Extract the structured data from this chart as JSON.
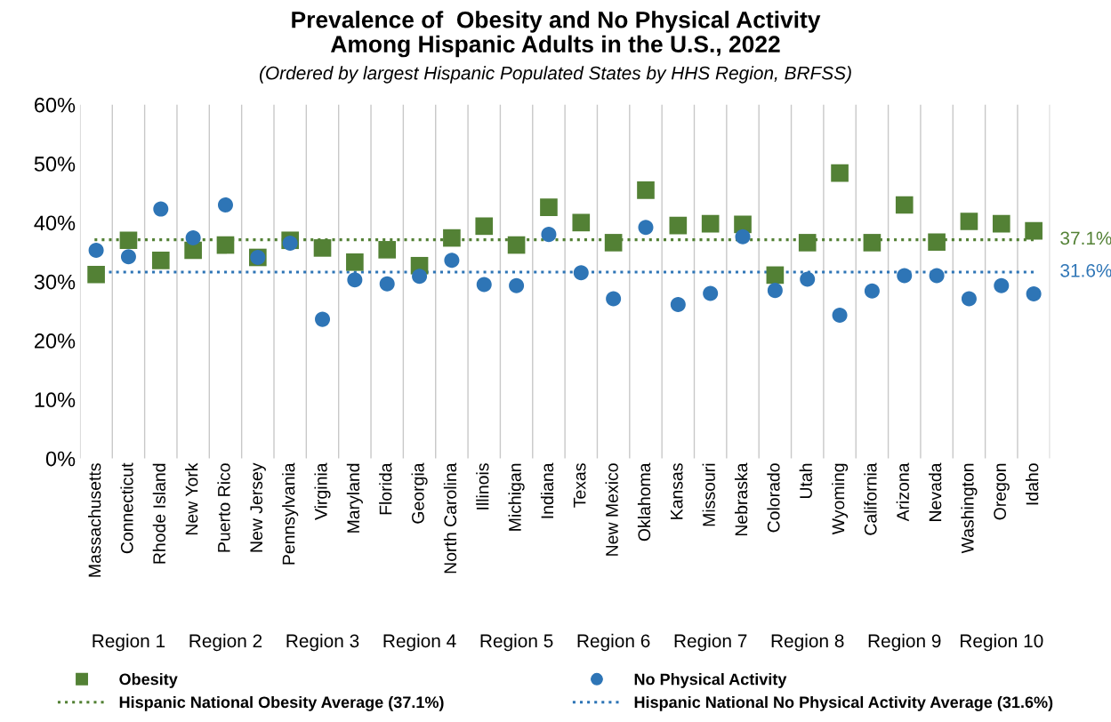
{
  "chart_data": {
    "type": "scatter",
    "title": "Prevalence of  Obesity and No Physical Activity\nAmong Hispanic Adults in the U.S., 2022",
    "subtitle": "(Ordered by largest Hispanic Populated States by HHS Region, BRFSS)",
    "categories": [
      "Massachusetts",
      "Connecticut",
      "Rhode Island",
      "New York",
      "Puerto Rico",
      "New Jersey",
      "Pennsylvania",
      "Virginia",
      "Maryland",
      "Florida",
      "Georgia",
      "North Carolina",
      "Illinois",
      "Michigan",
      "Indiana",
      "Texas",
      "New Mexico",
      "Oklahoma",
      "Kansas",
      "Missouri",
      "Nebraska",
      "Colorado",
      "Utah",
      "Wyoming",
      "California",
      "Arizona",
      "Nevada",
      "Washington",
      "Oregon",
      "Idaho"
    ],
    "series": [
      {
        "name": "Obesity",
        "color": "#538135",
        "marker": "square",
        "values": [
          31.2,
          37.0,
          33.6,
          35.3,
          36.2,
          34.1,
          37.0,
          35.7,
          33.3,
          35.4,
          32.7,
          37.4,
          39.4,
          36.2,
          42.6,
          40.0,
          36.6,
          45.5,
          39.5,
          39.8,
          39.7,
          31.1,
          36.6,
          48.4,
          36.6,
          43.0,
          36.7,
          40.2,
          39.8,
          38.6
        ]
      },
      {
        "name": "No Physical Activity",
        "color": "#2e75b6",
        "marker": "circle",
        "values": [
          35.3,
          34.2,
          42.3,
          37.4,
          43.0,
          34.1,
          36.5,
          23.6,
          30.3,
          29.6,
          30.9,
          33.6,
          29.5,
          29.3,
          38.0,
          31.5,
          27.1,
          39.2,
          26.1,
          28.0,
          37.6,
          28.5,
          30.4,
          24.3,
          28.4,
          31.0,
          31.0,
          27.1,
          29.3,
          27.9
        ]
      }
    ],
    "ylim": [
      0,
      60
    ],
    "yticks": [
      {
        "value": 0,
        "label": "0%"
      },
      {
        "value": 10,
        "label": "10%"
      },
      {
        "value": 20,
        "label": "20%"
      },
      {
        "value": 30,
        "label": "30%"
      },
      {
        "value": 40,
        "label": "40%"
      },
      {
        "value": 50,
        "label": "50%"
      },
      {
        "value": 60,
        "label": "60%"
      }
    ],
    "ref_lines": [
      {
        "axis": "y",
        "value": 37.1,
        "label": "Hispanic National Obesity Average (37.1%)",
        "color": "#538135",
        "line_style": "dotted"
      },
      {
        "axis": "y",
        "value": 31.6,
        "label": "Hispanic National No Physical Activity Average (31.6%)",
        "color": "#2e75b6",
        "line_style": "dotted"
      }
    ],
    "annotations": [
      "37.1%",
      "31.6%",
      "Region 1",
      "Region 2",
      "Region 3",
      "Region 4",
      "Region 5",
      "Region 6",
      "Region 7",
      "Region 8",
      "Region 9",
      "Region 10"
    ],
    "grid": "x",
    "legend": "bottom"
  }
}
